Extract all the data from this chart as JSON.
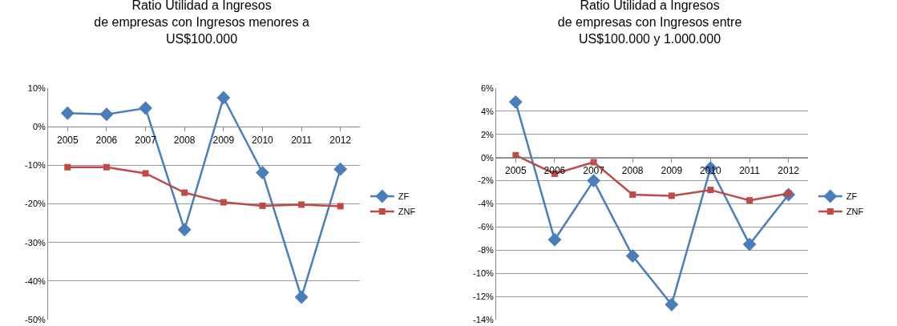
{
  "chart_data": [
    {
      "type": "line",
      "title": "Ratio Utilidad a Ingresos\nde empresas con Ingresos menores a\nUS$100.000",
      "categories": [
        "2005",
        "2006",
        "2007",
        "2008",
        "2009",
        "2010",
        "2011",
        "2012"
      ],
      "series": [
        {
          "name": "ZF",
          "color": "#4a7ebb",
          "marker": "diamond",
          "values": [
            3.5,
            3.2,
            4.8,
            -26.7,
            7.5,
            -11.9,
            -44.2,
            -11.0
          ]
        },
        {
          "name": "ZNF",
          "color": "#be4b48",
          "marker": "square",
          "values": [
            -10.5,
            -10.5,
            -12.1,
            -17.1,
            -19.6,
            -20.5,
            -20.2,
            -20.6
          ]
        }
      ],
      "ylim": [
        -50,
        10
      ],
      "yticks": [
        {
          "value": -50,
          "label": "-50%"
        },
        {
          "value": -40,
          "label": "-40%"
        },
        {
          "value": -30,
          "label": "-30%"
        },
        {
          "value": -20,
          "label": "-20%"
        },
        {
          "value": -10,
          "label": "-10%"
        },
        {
          "value": 0,
          "label": "0%"
        },
        {
          "value": 10,
          "label": "10%"
        }
      ],
      "grid": "y",
      "legend": "right",
      "line_style": "solid"
    },
    {
      "type": "line",
      "title": "Ratio Utilidad a Ingresos\nde empresas con Ingresos entre\nUS$100.000 y 1.000.000",
      "categories": [
        "2005",
        "2006",
        "2007",
        "2008",
        "2009",
        "2010",
        "2011",
        "2012"
      ],
      "series": [
        {
          "name": "ZF",
          "color": "#4a7ebb",
          "marker": "diamond",
          "values": [
            4.8,
            -7.1,
            -2.0,
            -8.5,
            -12.7,
            -0.9,
            -7.5,
            -3.2
          ]
        },
        {
          "name": "ZNF",
          "color": "#be4b48",
          "marker": "square",
          "values": [
            0.2,
            -1.4,
            -0.4,
            -3.2,
            -3.3,
            -2.8,
            -3.7,
            -3.1
          ]
        }
      ],
      "ylim": [
        -14,
        6
      ],
      "yticks": [
        {
          "value": -14,
          "label": "-14%"
        },
        {
          "value": -12,
          "label": "-12%"
        },
        {
          "value": -10,
          "label": "-10%"
        },
        {
          "value": -8,
          "label": "-8%"
        },
        {
          "value": -6,
          "label": "-6%"
        },
        {
          "value": -4,
          "label": "-4%"
        },
        {
          "value": -2,
          "label": "-2%"
        },
        {
          "value": 0,
          "label": "0%"
        },
        {
          "value": 2,
          "label": "2%"
        },
        {
          "value": 4,
          "label": "4%"
        },
        {
          "value": 6,
          "label": "6%"
        }
      ],
      "grid": "y",
      "legend": "right",
      "line_style": "solid"
    }
  ]
}
